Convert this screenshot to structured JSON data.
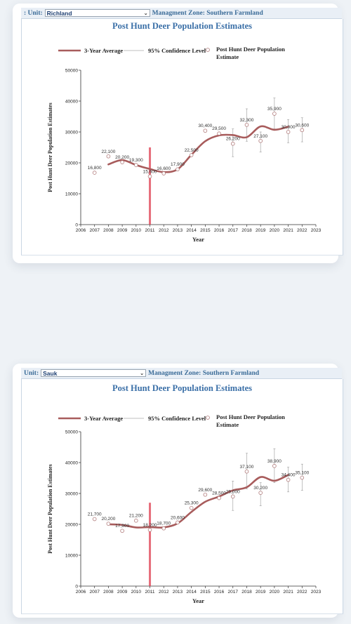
{
  "charts": [
    {
      "unit_label": ": Unit:",
      "unit_value": "Richland",
      "zone_text": "Managment Zone: Southern Farmland",
      "chart_data": {
        "type": "line",
        "title": "Post Hunt Deer Population Estimates",
        "xlabel": "Year",
        "ylabel": "Post Hunt Deer Population Estimates",
        "xlim": [
          2006,
          2023
        ],
        "ylim": [
          0,
          50000
        ],
        "xticks": [
          "2006",
          "2007",
          "2008",
          "2009",
          "2010",
          "2011",
          "2012",
          "2013",
          "2014",
          "2015",
          "2016",
          "2017",
          "2018",
          "2019",
          "2020",
          "2021",
          "2022",
          "2023"
        ],
        "yticks": [
          "0",
          "10000",
          "20000",
          "30000",
          "40000",
          "50000"
        ],
        "legend": [
          "3-Year Average",
          "95% Confidence Level",
          "Post Hunt Deer Population Estimate"
        ],
        "legend_position": "top",
        "estimates": [
          {
            "year": 2007,
            "value": 16800,
            "label": "16,800"
          },
          {
            "year": 2008,
            "value": 22100,
            "label": "22,100"
          },
          {
            "year": 2009,
            "value": 20200,
            "label": "20,200"
          },
          {
            "year": 2010,
            "value": 19300,
            "label": "19,300"
          },
          {
            "year": 2011,
            "value": 15600,
            "label": "15,600"
          },
          {
            "year": 2012,
            "value": 16600,
            "label": "16,600"
          },
          {
            "year": 2013,
            "value": 17900,
            "label": "17,900"
          },
          {
            "year": 2014,
            "value": 22500,
            "label": "22,500"
          },
          {
            "year": 2015,
            "value": 30400,
            "label": "30,400"
          },
          {
            "year": 2016,
            "value": 29500,
            "label": "29,500"
          },
          {
            "year": 2017,
            "value": 26200,
            "label": "26,200"
          },
          {
            "year": 2018,
            "value": 32300,
            "label": "32,300"
          },
          {
            "year": 2019,
            "value": 27100,
            "label": "27,100"
          },
          {
            "year": 2020,
            "value": 35900,
            "label": "35,900"
          },
          {
            "year": 2021,
            "value": 30000,
            "label": "30,000"
          },
          {
            "year": 2022,
            "value": 30600,
            "label": "30,600"
          }
        ],
        "confidence_intervals": [
          {
            "year": 2017,
            "low": 22000,
            "high": 31000
          },
          {
            "year": 2018,
            "low": 27000,
            "high": 37500
          },
          {
            "year": 2019,
            "low": 23500,
            "high": 30000
          },
          {
            "year": 2020,
            "low": 31000,
            "high": 41000
          },
          {
            "year": 2021,
            "low": 26500,
            "high": 34000
          },
          {
            "year": 2022,
            "low": 26800,
            "high": 34600
          }
        ],
        "three_year_average": [
          {
            "year": 2008,
            "value": 19500
          },
          {
            "year": 2009,
            "value": 20900
          },
          {
            "year": 2010,
            "value": 19300
          },
          {
            "year": 2011,
            "value": 18000
          },
          {
            "year": 2012,
            "value": 17000
          },
          {
            "year": 2013,
            "value": 17900
          },
          {
            "year": 2014,
            "value": 22600
          },
          {
            "year": 2015,
            "value": 27000
          },
          {
            "year": 2016,
            "value": 28900
          },
          {
            "year": 2017,
            "value": 29000
          },
          {
            "year": 2018,
            "value": 28300
          },
          {
            "year": 2019,
            "value": 31800
          },
          {
            "year": 2020,
            "value": 30700
          },
          {
            "year": 2021,
            "value": 31700
          }
        ],
        "highlight_year": 2011,
        "highlight_top_value": 25000,
        "accent_color": "#a85c5c",
        "highlight_color": "#e04a5a"
      }
    },
    {
      "unit_label": "Unit:",
      "unit_value": "Sauk",
      "zone_text": "Managment Zone: Southern Farmland",
      "chart_data": {
        "type": "line",
        "title": "Post Hunt Deer Population Estimates",
        "xlabel": "Year",
        "ylabel": "Post Hunt Deer Population Estimates",
        "xlim": [
          2006,
          2023
        ],
        "ylim": [
          0,
          50000
        ],
        "xticks": [
          "2006",
          "2007",
          "2008",
          "2009",
          "2010",
          "2011",
          "2012",
          "2013",
          "2014",
          "2015",
          "2016",
          "2017",
          "2018",
          "2019",
          "2020",
          "2021",
          "2022",
          "2023"
        ],
        "yticks": [
          "0",
          "10000",
          "20000",
          "30000",
          "40000",
          "50000"
        ],
        "legend": [
          "3-Year Average",
          "95% Confidence Level",
          "Post Hunt Deer Population Estimate"
        ],
        "legend_position": "top",
        "estimates": [
          {
            "year": 2007,
            "value": 21700,
            "label": "21,700"
          },
          {
            "year": 2008,
            "value": 20200,
            "label": "20,200"
          },
          {
            "year": 2009,
            "value": 17900,
            "label": "17,900"
          },
          {
            "year": 2010,
            "value": 21200,
            "label": "21,200"
          },
          {
            "year": 2011,
            "value": 18200,
            "label": "18,200"
          },
          {
            "year": 2012,
            "value": 18700,
            "label": "18,700"
          },
          {
            "year": 2013,
            "value": 20600,
            "label": "20,600"
          },
          {
            "year": 2014,
            "value": 25300,
            "label": "25,300"
          },
          {
            "year": 2015,
            "value": 29600,
            "label": "29,600"
          },
          {
            "year": 2016,
            "value": 28500,
            "label": "28,500"
          },
          {
            "year": 2017,
            "value": 29000,
            "label": "29,000"
          },
          {
            "year": 2018,
            "value": 37100,
            "label": "37,100"
          },
          {
            "year": 2019,
            "value": 30200,
            "label": "30,200"
          },
          {
            "year": 2020,
            "value": 38900,
            "label": "38,900"
          },
          {
            "year": 2021,
            "value": 34400,
            "label": "34,400"
          },
          {
            "year": 2022,
            "value": 35100,
            "label": "35,100"
          }
        ],
        "confidence_intervals": [
          {
            "year": 2017,
            "low": 24500,
            "high": 34000
          },
          {
            "year": 2018,
            "low": 31500,
            "high": 43000
          },
          {
            "year": 2019,
            "low": 26000,
            "high": 33500
          },
          {
            "year": 2020,
            "low": 33500,
            "high": 44500
          },
          {
            "year": 2021,
            "low": 30500,
            "high": 38500
          },
          {
            "year": 2022,
            "low": 31000,
            "high": 39500
          }
        ],
        "three_year_average": [
          {
            "year": 2008,
            "value": 20000
          },
          {
            "year": 2009,
            "value": 19800
          },
          {
            "year": 2010,
            "value": 19000
          },
          {
            "year": 2011,
            "value": 19100
          },
          {
            "year": 2012,
            "value": 19000
          },
          {
            "year": 2013,
            "value": 20300
          },
          {
            "year": 2014,
            "value": 24000
          },
          {
            "year": 2015,
            "value": 27300
          },
          {
            "year": 2016,
            "value": 29000
          },
          {
            "year": 2017,
            "value": 31000
          },
          {
            "year": 2018,
            "value": 32000
          },
          {
            "year": 2019,
            "value": 35300
          },
          {
            "year": 2020,
            "value": 34100
          },
          {
            "year": 2021,
            "value": 36000
          }
        ],
        "highlight_year": 2011,
        "highlight_top_value": 27000,
        "accent_color": "#a85c5c",
        "highlight_color": "#e04a5a"
      }
    }
  ]
}
